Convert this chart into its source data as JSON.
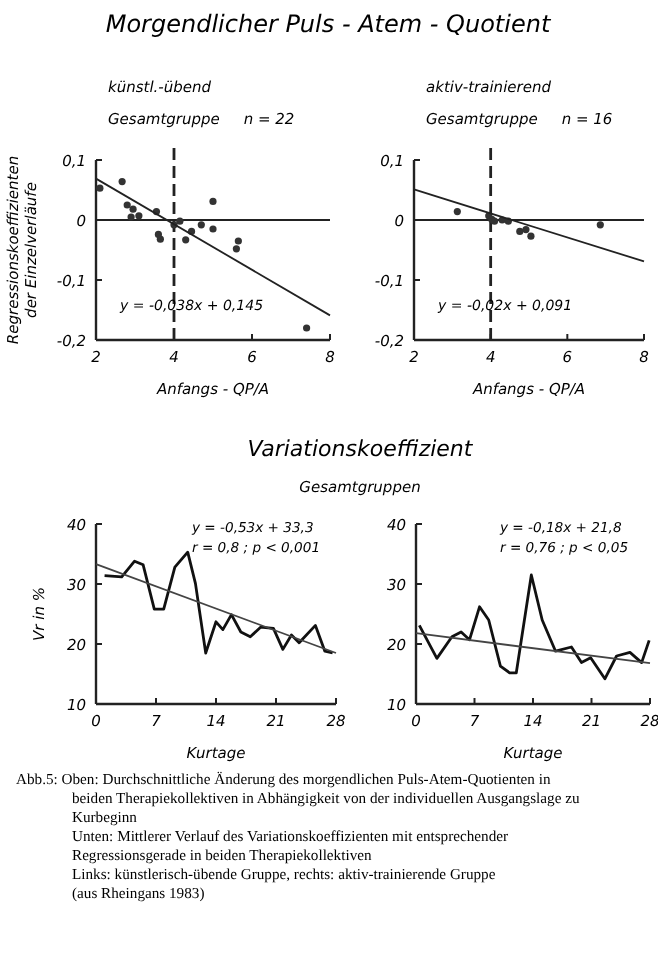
{
  "chart_data": [
    {
      "type": "scatter",
      "title": "Morgendlicher Puls - Atem - Quotient",
      "subtitle": "künstl.-übend",
      "annotations": [
        "Gesamtgruppe     n = 22",
        "y = -0,038x + 0,145"
      ],
      "ylabel": "Regressionskoeffizienten der Einzelverläufe",
      "xlabel": "Anfangs - QP/A",
      "xlim": [
        2,
        8
      ],
      "ylim": [
        -0.2,
        0.1
      ],
      "xticks": [
        2,
        4,
        6,
        8
      ],
      "yticks": [
        {
          "value": 0.1,
          "label": "0,1"
        },
        0,
        {
          "value": -0.1,
          "label": "-0,1"
        },
        {
          "value": -0.2,
          "label": "-0,2"
        }
      ],
      "marker": "circle",
      "ref_lines": [
        {
          "axis": "x",
          "value": 4,
          "line_style": "dashed",
          "color": "#222222"
        },
        {
          "axis": "y",
          "value": 0,
          "line_style": "solid",
          "color": "#222222"
        }
      ],
      "series": [
        {
          "color": "#333333",
          "x": [
            2.1,
            2.67,
            2.8,
            2.95,
            2.9,
            3.1,
            3.55,
            3.6,
            3.65,
            4.0,
            4.15,
            4.3,
            4.45,
            4.7,
            5.0,
            5.0,
            5.65,
            5.6,
            7.4
          ],
          "values": [
            0.053,
            0.064,
            0.025,
            0.018,
            0.005,
            0.007,
            0.014,
            -0.024,
            -0.032,
            -0.008,
            -0.002,
            -0.033,
            -0.019,
            -0.008,
            0.031,
            -0.015,
            -0.035,
            -0.048,
            -0.18
          ]
        },
        {
          "type": "line",
          "marker": "none",
          "color": "#222222",
          "x": [
            2,
            8
          ],
          "values": [
            0.069,
            -0.159
          ]
        }
      ]
    },
    {
      "type": "scatter",
      "subtitle": "aktiv-trainierend",
      "annotations": [
        "Gesamtgruppe     n = 16",
        "y = -0,02x + 0,091"
      ],
      "xlabel": "Anfangs - QP/A",
      "xlim": [
        2,
        8
      ],
      "ylim": [
        -0.2,
        0.1
      ],
      "xticks": [
        2,
        4,
        6,
        8
      ],
      "yticks": [
        {
          "value": 0.1,
          "label": "0,1"
        },
        0,
        {
          "value": -0.1,
          "label": "-0,1"
        },
        {
          "value": -0.2,
          "label": "-0,2"
        }
      ],
      "marker": "circle",
      "ref_lines": [
        {
          "axis": "x",
          "value": 4,
          "line_style": "dashed",
          "color": "#222222"
        },
        {
          "axis": "y",
          "value": 0,
          "line_style": "solid",
          "color": "#222222"
        }
      ],
      "series": [
        {
          "color": "#333333",
          "x": [
            3.13,
            3.95,
            4.03,
            4.1,
            4.3,
            4.46,
            4.76,
            4.92,
            5.05,
            6.86
          ],
          "values": [
            0.014,
            0.007,
            0.001,
            -0.002,
            0,
            -0.002,
            -0.019,
            -0.016,
            -0.027,
            -0.008
          ]
        },
        {
          "type": "line",
          "marker": "none",
          "color": "#222222",
          "x": [
            2,
            8
          ],
          "values": [
            0.051,
            -0.069
          ]
        }
      ]
    },
    {
      "type": "line",
      "title": "Variationskoeffizient",
      "subtitle": "Gesamtgruppen",
      "annotations": [
        "y = -0,53x + 33,3",
        "r = 0,8 ; p < 0,001",
        "Abb.5: Oben: Durchschnittliche Änderung des morgendlichen Puls-Atem-Quotienten in beiden Therapiekollektiven in Abhängigkeit von der individuellen Ausgangslage zu Kurbeginn",
        "Unten: Mittlerer Verlauf des Variationskoeffizienten mit entsprechender Regressionsgerade in beiden Therapiekollektiven",
        "Links: künstlerisch-übende Gruppe, rechts: aktiv-trainierende Gruppe",
        "(aus Rheingans 1983)"
      ],
      "ylabel": "Vr in %",
      "xlabel": "Kurtage",
      "xlim": [
        0,
        28
      ],
      "ylim": [
        10,
        40
      ],
      "xticks": [
        0,
        7,
        14,
        21,
        28
      ],
      "yticks": [
        10,
        20,
        30,
        40
      ],
      "series": [
        {
          "color": "#111111",
          "x": [
            1,
            3,
            4.5,
            5.5,
            6.8,
            7.9,
            9.2,
            10.7,
            11.6,
            12.8,
            14,
            14.8,
            15.8,
            16.9,
            18,
            19.2,
            20.7,
            21.8,
            22.8,
            23.7,
            25.6,
            26.7,
            27.6
          ],
          "values": [
            31.4,
            31.2,
            33.8,
            33.2,
            25.8,
            25.8,
            32.8,
            35.3,
            30.1,
            18.5,
            23.7,
            22.4,
            24.9,
            22,
            21.2,
            22.8,
            22.6,
            19.1,
            21.5,
            20.2,
            23.1,
            18.8,
            18.5
          ]
        },
        {
          "color": "#444444",
          "x": [
            0,
            28
          ],
          "values": [
            33.3,
            18.5
          ]
        }
      ]
    },
    {
      "type": "line",
      "annotations": [
        "y = -0,18x + 21,8",
        "r = 0,76 ; p < 0,05"
      ],
      "xlabel": "Kurtage",
      "xlim": [
        0,
        28
      ],
      "ylim": [
        10,
        40
      ],
      "xticks": [
        0,
        7,
        14,
        21,
        28
      ],
      "yticks": [
        10,
        20,
        30,
        40
      ],
      "series": [
        {
          "color": "#111111",
          "x": [
            0.4,
            2.5,
            4.3,
            5.4,
            6.4,
            7.6,
            8.7,
            10.1,
            11.2,
            12,
            13.8,
            15.1,
            16.7,
            18.6,
            19.8,
            20.9,
            22.6,
            24,
            25.6,
            27,
            27.9
          ],
          "values": [
            23.1,
            17.6,
            21.2,
            22,
            20.7,
            26.2,
            24,
            16.3,
            15.2,
            15.2,
            31.5,
            24,
            18.8,
            19.5,
            16.9,
            17.7,
            14.2,
            18,
            18.6,
            16.9,
            20.6
          ]
        },
        {
          "color": "#444444",
          "x": [
            0,
            28
          ],
          "values": [
            21.8,
            16.8
          ]
        }
      ]
    }
  ]
}
